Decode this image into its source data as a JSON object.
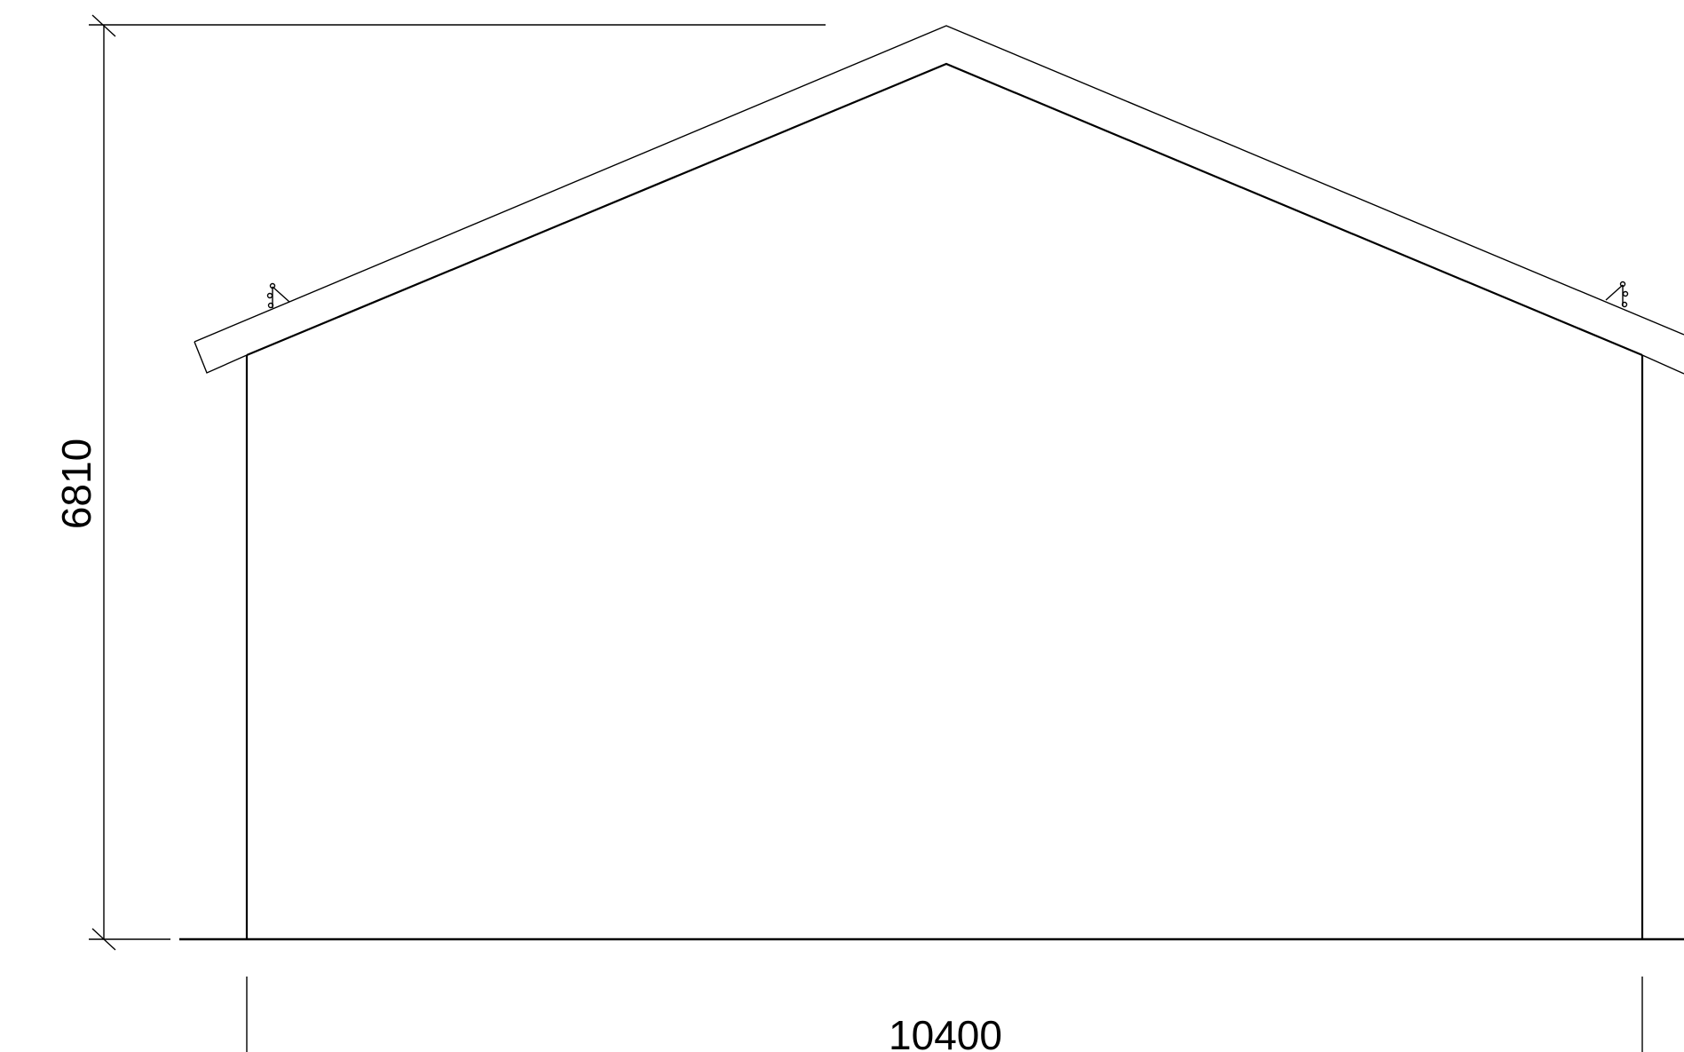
{
  "drawing": {
    "type": "building-cross-section-elevation",
    "colors": {
      "line": "#000000",
      "background": "#ffffff"
    },
    "dimensions": {
      "height_label": "6810",
      "width_label": "10400"
    }
  }
}
